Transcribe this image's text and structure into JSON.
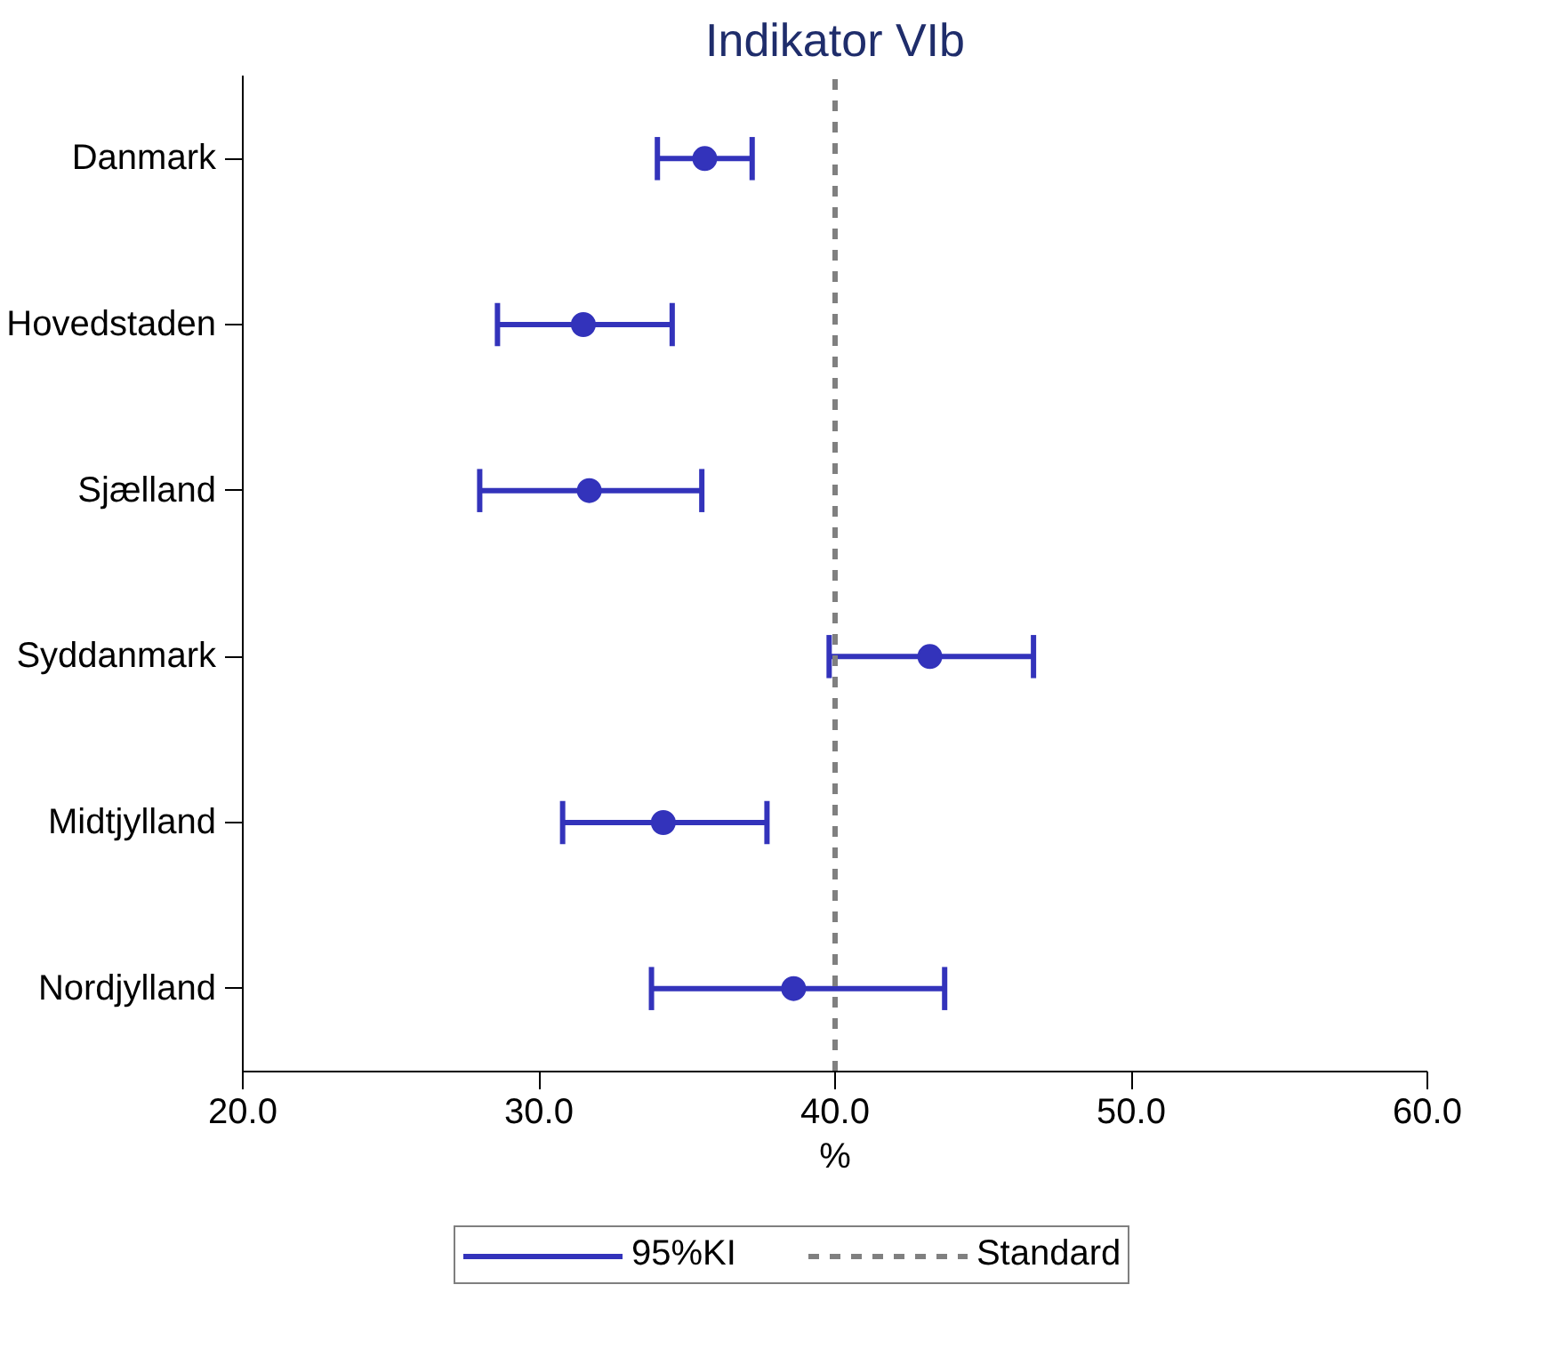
{
  "chart_data": {
    "type": "scatter",
    "orientation": "horizontal",
    "title": "Indikator VIb",
    "xlabel": "%",
    "categories": [
      "Danmark",
      "Hovedstaden",
      "Sjælland",
      "Syddanmark",
      "Midtjylland",
      "Nordjylland"
    ],
    "series": [
      {
        "name": "95%KI",
        "color": "#3333bb",
        "values": [
          35.6,
          31.5,
          31.7,
          43.2,
          34.2,
          38.6
        ],
        "errors": [
          [
            34.0,
            37.2
          ],
          [
            28.6,
            34.5
          ],
          [
            28.0,
            35.5
          ],
          [
            39.8,
            46.7
          ],
          [
            30.8,
            37.7
          ],
          [
            33.8,
            43.7
          ]
        ]
      }
    ],
    "xlim": [
      20,
      60
    ],
    "xticks": [
      {
        "value": 20,
        "label": "20.0"
      },
      {
        "value": 30,
        "label": "30.0"
      },
      {
        "value": 40,
        "label": "40.0"
      },
      {
        "value": 50,
        "label": "50.0"
      },
      {
        "value": 60,
        "label": "60.0"
      }
    ],
    "ref_lines": [
      {
        "axis": "x",
        "value": 40,
        "label": "Standard",
        "color": "#808080",
        "line_style": "dashed"
      }
    ],
    "marker": "circle",
    "grid": false,
    "legend": "bottom"
  }
}
